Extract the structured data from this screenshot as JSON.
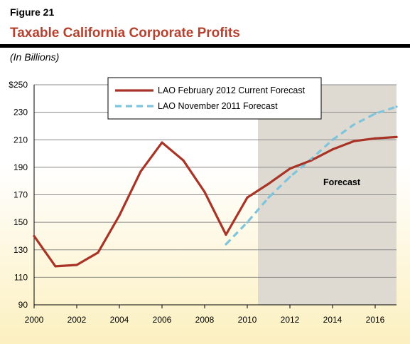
{
  "figure_label": "Figure 21",
  "colors": {
    "title": "#b5412f",
    "current_series": "#a83427",
    "november_series": "#7dc4dc",
    "forecast_shade": "#dedad1",
    "background_top": "#ffffff",
    "background_bottom": "#fcf0c0"
  },
  "chart_data": {
    "type": "line",
    "title": "Taxable California Corporate Profits",
    "subtitle": "(In Billions)",
    "xlabel": "",
    "ylabel": "",
    "xlim": [
      2000,
      2017
    ],
    "ylim": [
      90,
      250
    ],
    "y_ticks": [
      90,
      110,
      130,
      150,
      170,
      190,
      210,
      230,
      250
    ],
    "y_tick_labels": [
      "90",
      "110",
      "130",
      "150",
      "170",
      "190",
      "210",
      "230",
      "$250"
    ],
    "x_ticks": [
      2000,
      2002,
      2004,
      2006,
      2008,
      2010,
      2012,
      2014,
      2016
    ],
    "x_tick_labels": [
      "2000",
      "2002",
      "2004",
      "2006",
      "2008",
      "2010",
      "2012",
      "2014",
      "2016"
    ],
    "grid": "horizontal",
    "legend_position": "top",
    "shaded_region": {
      "x_from": 2010.5,
      "x_to": 2017,
      "label": "Forecast"
    },
    "series": [
      {
        "name": "LAO February 2012 Current Forecast",
        "style": "solid",
        "x": [
          2000,
          2001,
          2002,
          2003,
          2004,
          2005,
          2006,
          2007,
          2008,
          2009,
          2010,
          2011,
          2012,
          2013,
          2014,
          2015,
          2016,
          2017
        ],
        "y": [
          140,
          118,
          119,
          128,
          155,
          187,
          208,
          195,
          172,
          141,
          168,
          178,
          189,
          195,
          203,
          209,
          211,
          212
        ]
      },
      {
        "name": "LAO November 2011 Forecast",
        "style": "dashed",
        "x": [
          2009,
          2010,
          2011,
          2012,
          2013,
          2014,
          2015,
          2016,
          2017
        ],
        "y": [
          134,
          150,
          168,
          183,
          196,
          210,
          221,
          229,
          234
        ]
      }
    ]
  }
}
